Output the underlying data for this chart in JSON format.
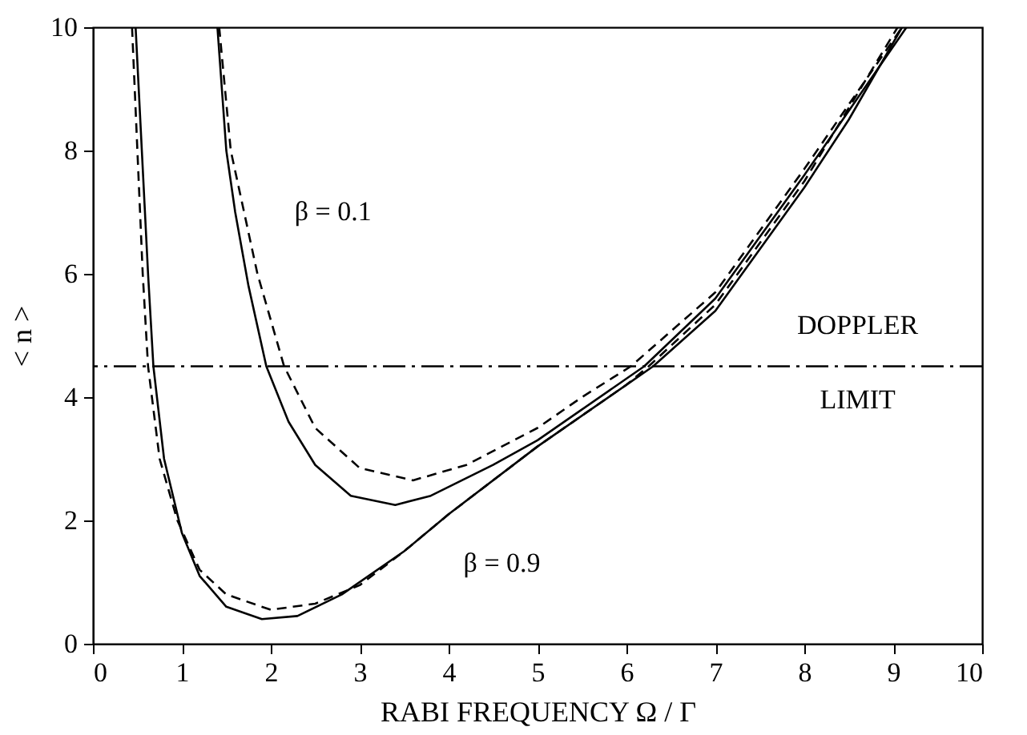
{
  "chart_data": {
    "type": "line",
    "xlabel": "RABI FREQUENCY  Ω / Γ",
    "ylabel": "< n >",
    "xlim": [
      0,
      10
    ],
    "ylim": [
      0,
      10
    ],
    "xticks": [
      0,
      1,
      2,
      3,
      4,
      5,
      6,
      7,
      8,
      9,
      10
    ],
    "yticks": [
      0,
      2,
      4,
      6,
      8,
      10
    ],
    "grid": false,
    "marker": "none",
    "series": [
      {
        "color": "#000000",
        "line_style": "solid",
        "x": [
          0.48,
          0.55,
          0.62,
          0.68,
          0.8,
          1.0,
          1.2,
          1.5,
          1.9,
          2.3,
          2.8,
          3.5,
          4,
          5,
          6,
          6.3,
          7,
          8,
          8.5,
          9.1
        ],
        "values": [
          10,
          8,
          6,
          4.5,
          3,
          1.8,
          1.1,
          0.6,
          0.4,
          0.45,
          0.8,
          1.5,
          2.1,
          3.2,
          4.2,
          4.5,
          5.4,
          7.4,
          8.5,
          10
        ]
      },
      {
        "color": "#000000",
        "line_style": "dashed",
        "x": [
          0.44,
          0.5,
          0.56,
          0.62,
          0.75,
          0.95,
          1.2,
          1.5,
          2.0,
          2.5,
          3,
          3.5,
          4,
          5,
          6,
          6.25,
          7,
          8,
          9.05
        ],
        "values": [
          10,
          8,
          6,
          4.5,
          3,
          2,
          1.2,
          0.8,
          0.55,
          0.65,
          0.95,
          1.5,
          2.1,
          3.2,
          4.2,
          4.5,
          5.5,
          7.5,
          10
        ]
      },
      {
        "color": "#000000",
        "line_style": "solid",
        "x": [
          1.4,
          1.5,
          1.6,
          1.75,
          1.95,
          2.2,
          2.5,
          2.9,
          3.4,
          3.8,
          4.5,
          5,
          5.5,
          6.2,
          7,
          8,
          9.15
        ],
        "values": [
          10,
          8,
          7,
          5.8,
          4.5,
          3.6,
          2.9,
          2.4,
          2.25,
          2.4,
          2.9,
          3.3,
          3.8,
          4.5,
          5.6,
          7.6,
          10
        ]
      },
      {
        "color": "#000000",
        "line_style": "dashed",
        "x": [
          1.42,
          1.55,
          1.7,
          1.85,
          2.15,
          2.5,
          3,
          3.6,
          4.2,
          5,
          5.5,
          6.05,
          7,
          8,
          9.1
        ],
        "values": [
          10,
          8,
          7,
          6,
          4.5,
          3.5,
          2.85,
          2.65,
          2.9,
          3.5,
          4,
          4.5,
          5.7,
          7.7,
          10
        ]
      }
    ],
    "ref_lines": [
      {
        "axis": "y",
        "value": 4.5,
        "color": "#000000",
        "line_style": "dashed"
      }
    ],
    "annotations": [
      "DOPPLER",
      "LIMIT",
      "β = 0.1",
      "β = 0.9"
    ]
  }
}
